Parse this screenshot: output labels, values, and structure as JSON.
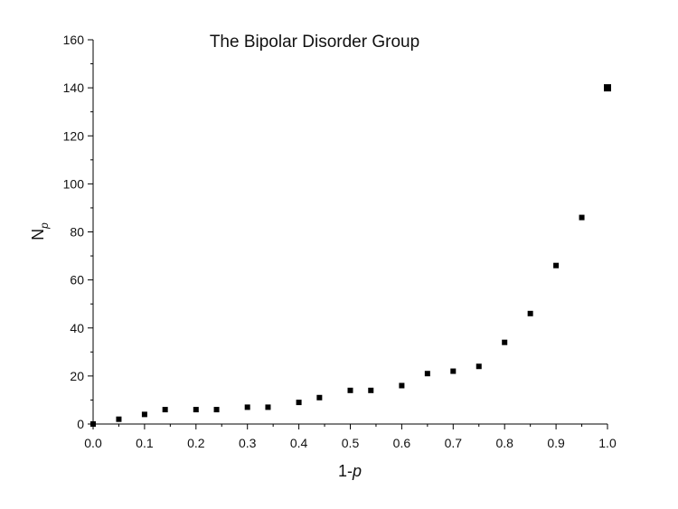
{
  "chart_data": {
    "type": "scatter",
    "title": "The Bipolar Disorder Group",
    "xlabel": {
      "main": "1-",
      "italic": "p"
    },
    "ylabel": {
      "main": "N",
      "sub": "p"
    },
    "xlim": [
      0.0,
      1.0
    ],
    "ylim": [
      0,
      160
    ],
    "xticks": [
      "0.0",
      "0.1",
      "0.2",
      "0.3",
      "0.4",
      "0.5",
      "0.6",
      "0.7",
      "0.8",
      "0.9",
      "1.0"
    ],
    "yticks": [
      "0",
      "20",
      "40",
      "60",
      "80",
      "100",
      "120",
      "140",
      "160"
    ],
    "grid": false,
    "marker": "square",
    "marker_color": "#000000",
    "series": [
      {
        "points": [
          {
            "x": 0.0,
            "y": 0
          },
          {
            "x": 0.05,
            "y": 2
          },
          {
            "x": 0.1,
            "y": 4
          },
          {
            "x": 0.14,
            "y": 6
          },
          {
            "x": 0.2,
            "y": 6
          },
          {
            "x": 0.24,
            "y": 6
          },
          {
            "x": 0.3,
            "y": 7
          },
          {
            "x": 0.34,
            "y": 7
          },
          {
            "x": 0.4,
            "y": 9
          },
          {
            "x": 0.44,
            "y": 11
          },
          {
            "x": 0.5,
            "y": 14
          },
          {
            "x": 0.54,
            "y": 14
          },
          {
            "x": 0.6,
            "y": 16
          },
          {
            "x": 0.65,
            "y": 21
          },
          {
            "x": 0.7,
            "y": 22
          },
          {
            "x": 0.75,
            "y": 24
          },
          {
            "x": 0.8,
            "y": 34
          },
          {
            "x": 0.85,
            "y": 46
          },
          {
            "x": 0.9,
            "y": 66
          },
          {
            "x": 0.95,
            "y": 86
          },
          {
            "x": 1.0,
            "y": 140
          }
        ]
      }
    ]
  }
}
